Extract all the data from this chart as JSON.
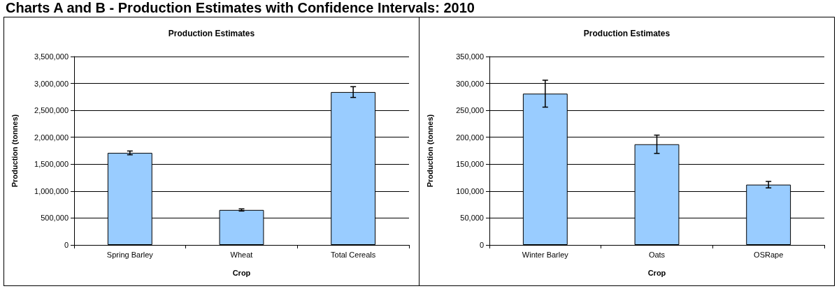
{
  "chart_data": [
    {
      "type": "bar",
      "title": "Production Estimates",
      "annotations": [
        "Charts A and B - Production Estimates with Confidence Intervals: 2010"
      ],
      "xlabel": "Crop",
      "ylabel": "Production (tonnes)",
      "categories": [
        "Spring Barley",
        "Wheat",
        "Total Cereals"
      ],
      "values": [
        1710000,
        650000,
        2840000
      ],
      "errors": [
        35000,
        20000,
        100000
      ],
      "color": "#99ccff",
      "ylim": [
        0,
        3500000
      ],
      "yticks": [
        0,
        {
          "value": 500000,
          "label": "500,000"
        },
        {
          "value": 1000000,
          "label": "1,000,000"
        },
        {
          "value": 1500000,
          "label": "1,500,000"
        },
        {
          "value": 2000000,
          "label": "2,000,000"
        },
        {
          "value": 2500000,
          "label": "2,500,000"
        },
        {
          "value": 3000000,
          "label": "3,000,000"
        },
        {
          "value": 3500000,
          "label": "3,500,000"
        }
      ],
      "grid": "y"
    },
    {
      "type": "bar",
      "title": "Production Estimates",
      "xlabel": "Crop",
      "ylabel": "Production (tonnes)",
      "categories": [
        "Winter Barley",
        "Oats",
        "OSRape"
      ],
      "values": [
        281000,
        187000,
        112000
      ],
      "errors": [
        25000,
        17000,
        6000
      ],
      "color": "#99ccff",
      "ylim": [
        0,
        350000
      ],
      "yticks": [
        0,
        {
          "value": 50000,
          "label": "50,000"
        },
        {
          "value": 100000,
          "label": "100,000"
        },
        {
          "value": 150000,
          "label": "150,000"
        },
        {
          "value": 200000,
          "label": "200,000"
        },
        {
          "value": 250000,
          "label": "250,000"
        },
        {
          "value": 300000,
          "label": "300,000"
        },
        {
          "value": 350000,
          "label": "350,000"
        }
      ],
      "grid": "y"
    }
  ]
}
